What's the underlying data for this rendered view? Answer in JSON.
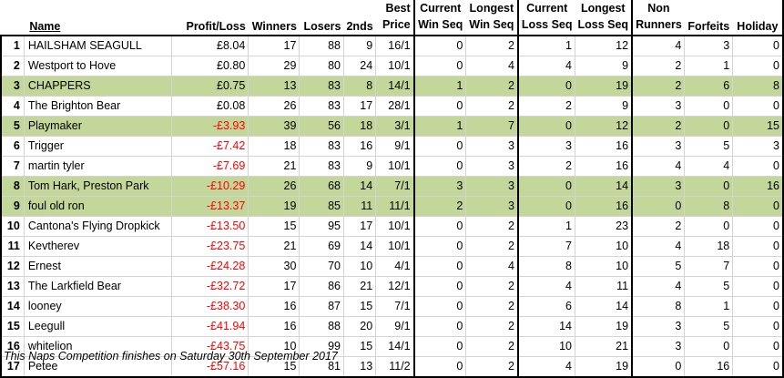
{
  "header": {
    "name": "Name",
    "profit_loss": "Profit/Loss",
    "winners": "Winners",
    "losers": "Losers",
    "seconds": "2nds",
    "best_price": [
      "Best",
      "Price"
    ],
    "current_win_seq": [
      "Current",
      "Win Seq"
    ],
    "longest_win_seq": [
      "Longest",
      "Win Seq"
    ],
    "current_loss_seq": [
      "Current",
      "Loss Seq"
    ],
    "longest_loss_seq": [
      "Longest",
      "Loss Seq"
    ],
    "non_runners": [
      "Non",
      "Runners"
    ],
    "forfeits": "Forfeits",
    "holiday": "Holiday"
  },
  "rows": [
    {
      "pos": "1",
      "name": "HAILSHAM SEAGULL",
      "pl": "£8.04",
      "winners": "17",
      "losers": "88",
      "seconds": "9",
      "best": "16/1",
      "cws": "0",
      "lws": "2",
      "cls": "1",
      "lls": "12",
      "nr": "4",
      "forf": "3",
      "hol": "0",
      "highlight": false,
      "neg": false
    },
    {
      "pos": "2",
      "name": "Westport to Hove",
      "pl": "£0.80",
      "winners": "29",
      "losers": "80",
      "seconds": "24",
      "best": "10/1",
      "cws": "0",
      "lws": "4",
      "cls": "4",
      "lls": "9",
      "nr": "2",
      "forf": "1",
      "hol": "0",
      "highlight": false,
      "neg": false
    },
    {
      "pos": "3",
      "name": "CHAPPERS",
      "pl": "£0.75",
      "winners": "13",
      "losers": "83",
      "seconds": "8",
      "best": "14/1",
      "cws": "1",
      "lws": "2",
      "cls": "0",
      "lls": "19",
      "nr": "2",
      "forf": "6",
      "hol": "8",
      "highlight": true,
      "neg": false
    },
    {
      "pos": "4",
      "name": "The Brighton Bear",
      "pl": "£0.08",
      "winners": "26",
      "losers": "83",
      "seconds": "17",
      "best": "28/1",
      "cws": "0",
      "lws": "2",
      "cls": "2",
      "lls": "9",
      "nr": "3",
      "forf": "0",
      "hol": "0",
      "highlight": false,
      "neg": false
    },
    {
      "pos": "5",
      "name": "Playmaker",
      "pl": "-£3.93",
      "winners": "39",
      "losers": "56",
      "seconds": "18",
      "best": "3/1",
      "cws": "1",
      "lws": "7",
      "cls": "0",
      "lls": "12",
      "nr": "2",
      "forf": "0",
      "hol": "15",
      "highlight": true,
      "neg": true
    },
    {
      "pos": "6",
      "name": "Trigger",
      "pl": "-£7.42",
      "winners": "18",
      "losers": "83",
      "seconds": "16",
      "best": "9/1",
      "cws": "0",
      "lws": "3",
      "cls": "3",
      "lls": "16",
      "nr": "3",
      "forf": "5",
      "hol": "3",
      "highlight": false,
      "neg": true
    },
    {
      "pos": "7",
      "name": "martin tyler",
      "pl": "-£7.69",
      "winners": "21",
      "losers": "83",
      "seconds": "9",
      "best": "10/1",
      "cws": "0",
      "lws": "3",
      "cls": "2",
      "lls": "16",
      "nr": "4",
      "forf": "4",
      "hol": "0",
      "highlight": false,
      "neg": true
    },
    {
      "pos": "8",
      "name": "Tom Hark, Preston Park",
      "pl": "-£10.29",
      "winners": "26",
      "losers": "68",
      "seconds": "14",
      "best": "7/1",
      "cws": "3",
      "lws": "3",
      "cls": "0",
      "lls": "14",
      "nr": "3",
      "forf": "0",
      "hol": "16",
      "highlight": true,
      "neg": true
    },
    {
      "pos": "9",
      "name": "foul old ron",
      "pl": "-£13.37",
      "winners": "19",
      "losers": "85",
      "seconds": "11",
      "best": "11/1",
      "cws": "2",
      "lws": "3",
      "cls": "0",
      "lls": "16",
      "nr": "0",
      "forf": "8",
      "hol": "0",
      "highlight": true,
      "neg": true
    },
    {
      "pos": "10",
      "name": "Cantona's Flying Dropkick",
      "pl": "-£13.50",
      "winners": "15",
      "losers": "95",
      "seconds": "17",
      "best": "10/1",
      "cws": "0",
      "lws": "2",
      "cls": "1",
      "lls": "23",
      "nr": "2",
      "forf": "0",
      "hol": "0",
      "highlight": false,
      "neg": true
    },
    {
      "pos": "11",
      "name": "Kevtherev",
      "pl": "-£23.75",
      "winners": "21",
      "losers": "69",
      "seconds": "14",
      "best": "10/1",
      "cws": "0",
      "lws": "2",
      "cls": "7",
      "lls": "10",
      "nr": "4",
      "forf": "18",
      "hol": "0",
      "highlight": false,
      "neg": true
    },
    {
      "pos": "12",
      "name": "Ernest",
      "pl": "-£24.28",
      "winners": "30",
      "losers": "70",
      "seconds": "10",
      "best": "4/1",
      "cws": "0",
      "lws": "4",
      "cls": "8",
      "lls": "10",
      "nr": "5",
      "forf": "7",
      "hol": "0",
      "highlight": false,
      "neg": true
    },
    {
      "pos": "13",
      "name": "The Larkfield Bear",
      "pl": "-£32.72",
      "winners": "17",
      "losers": "86",
      "seconds": "21",
      "best": "12/1",
      "cws": "0",
      "lws": "2",
      "cls": "4",
      "lls": "11",
      "nr": "4",
      "forf": "5",
      "hol": "0",
      "highlight": false,
      "neg": true
    },
    {
      "pos": "14",
      "name": "looney",
      "pl": "-£38.30",
      "winners": "16",
      "losers": "87",
      "seconds": "15",
      "best": "7/1",
      "cws": "0",
      "lws": "2",
      "cls": "6",
      "lls": "14",
      "nr": "8",
      "forf": "1",
      "hol": "0",
      "highlight": false,
      "neg": true
    },
    {
      "pos": "15",
      "name": "Leegull",
      "pl": "-£41.94",
      "winners": "16",
      "losers": "88",
      "seconds": "20",
      "best": "9/1",
      "cws": "0",
      "lws": "2",
      "cls": "14",
      "lls": "19",
      "nr": "3",
      "forf": "5",
      "hol": "0",
      "highlight": false,
      "neg": true
    },
    {
      "pos": "16",
      "name": "whitelion",
      "pl": "-£43.75",
      "winners": "10",
      "losers": "99",
      "seconds": "15",
      "best": "14/1",
      "cws": "0",
      "lws": "2",
      "cls": "10",
      "lls": "21",
      "nr": "3",
      "forf": "0",
      "hol": "0",
      "highlight": false,
      "neg": true
    },
    {
      "pos": "17",
      "name": "Petee",
      "pl": "-£57.16",
      "winners": "15",
      "losers": "81",
      "seconds": "13",
      "best": "11/2",
      "cws": "0",
      "lws": "2",
      "cls": "4",
      "lls": "19",
      "nr": "0",
      "forf": "16",
      "hol": "0",
      "highlight": false,
      "neg": true
    }
  ],
  "footer": "This Naps Competition finishes on Saturday 30th September 2017",
  "colors": {
    "highlight": "#c4d79b",
    "negative": "#ff0000",
    "border": "#000000"
  }
}
